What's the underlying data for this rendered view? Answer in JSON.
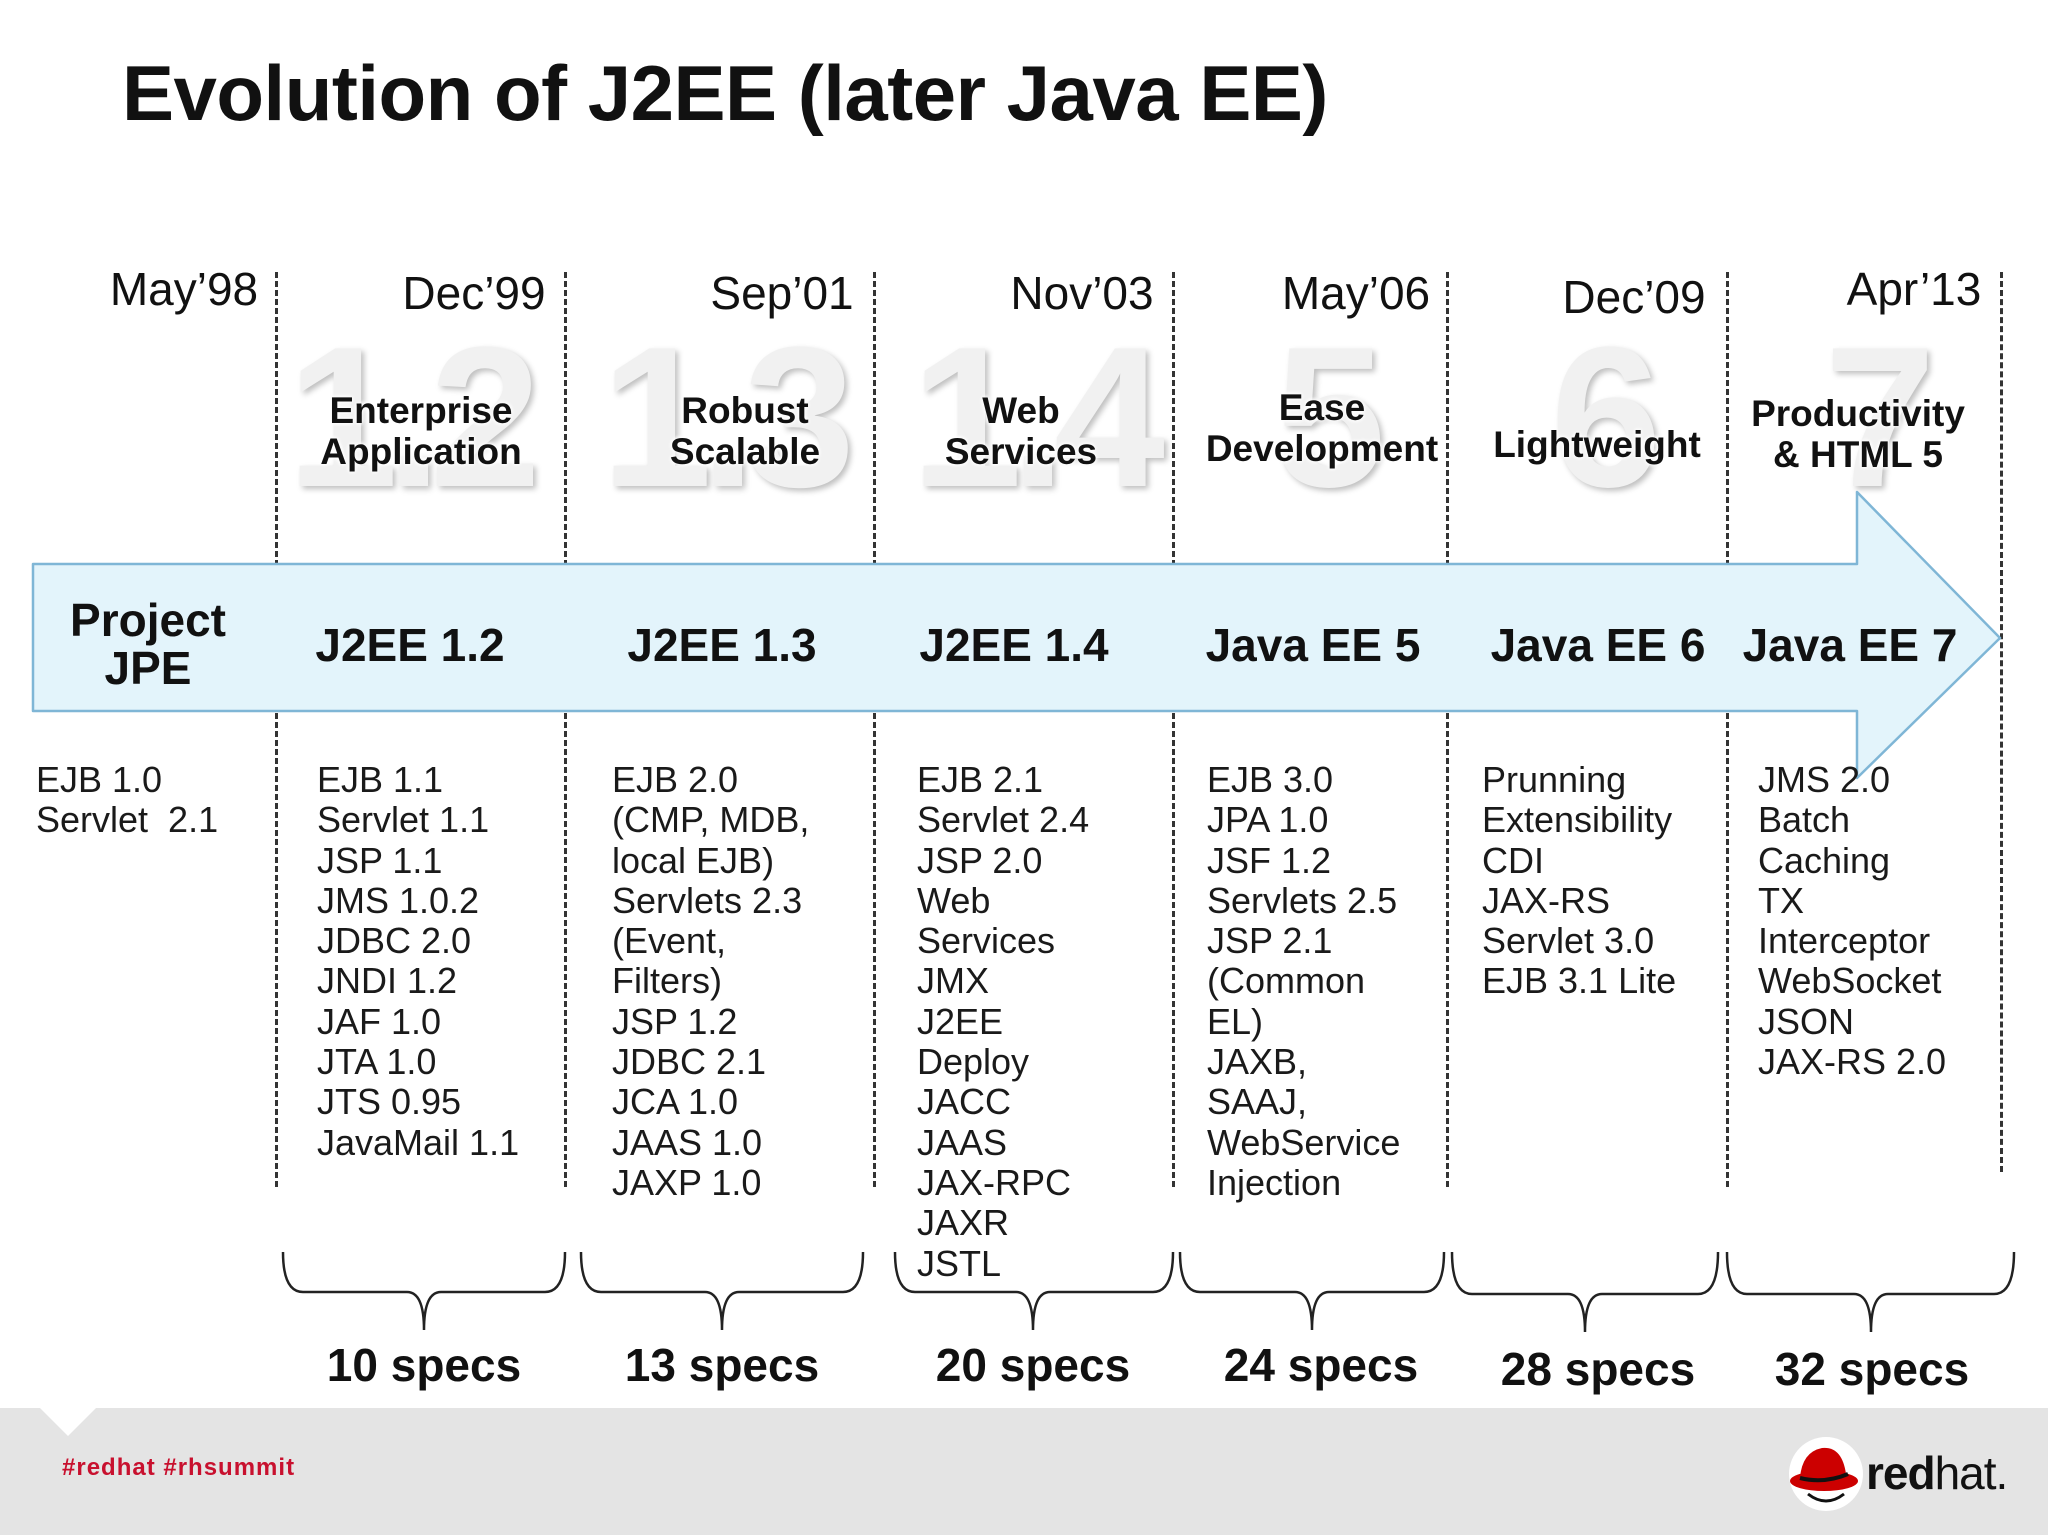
{
  "title": "Evolution of J2EE (later Java EE)",
  "colors": {
    "arrow_fill": "#e3f4fb",
    "arrow_stroke": "#7fb6d6",
    "hashtag": "#c8102e"
  },
  "releases": [
    {
      "date": "May’98",
      "version": "Project\nJPE",
      "theme": "",
      "number": "",
      "specs": [
        "EJB 1.0",
        "Servlet  2.1"
      ],
      "spec_count": ""
    },
    {
      "date": "Dec’99",
      "version": "J2EE 1.2",
      "theme": "Enterprise\nApplication",
      "number": "1.2",
      "specs": [
        "EJB 1.1",
        "Servlet 1.1",
        "JSP 1.1",
        "JMS 1.0.2",
        "JDBC 2.0",
        "JNDI 1.2",
        "JAF 1.0",
        "JTA 1.0",
        "JTS 0.95",
        "JavaMail 1.1"
      ],
      "spec_count": "10 specs"
    },
    {
      "date": "Sep’01",
      "version": "J2EE 1.3",
      "theme": "Robust\nScalable",
      "number": "1.3",
      "specs": [
        "EJB 2.0",
        "(CMP, MDB,",
        "local EJB)",
        "Servlets 2.3",
        "(Event,",
        "Filters)",
        "JSP 1.2",
        "JDBC 2.1",
        "JCA 1.0",
        "JAAS 1.0",
        "JAXP 1.0"
      ],
      "spec_count": "13 specs"
    },
    {
      "date": "Nov’03",
      "version": "J2EE 1.4",
      "theme": "Web\nServices",
      "number": "1.4",
      "specs": [
        "EJB 2.1",
        "Servlet 2.4",
        "JSP 2.0",
        "Web",
        "Services",
        "JMX",
        "J2EE",
        "Deploy",
        "JACC",
        "JAAS",
        "JAX-RPC",
        "JAXR",
        "JSTL"
      ],
      "spec_count": "20 specs"
    },
    {
      "date": "May’06",
      "version": "Java EE 5",
      "theme": "Ease\nDevelopment",
      "number": "5",
      "specs": [
        "EJB 3.0",
        "JPA 1.0",
        "JSF 1.2",
        "Servlets 2.5",
        "JSP 2.1",
        "(Common",
        "EL)",
        "JAXB,",
        "SAAJ,",
        "WebService",
        "Injection"
      ],
      "spec_count": "24 specs"
    },
    {
      "date": "Dec’09",
      "version": "Java EE 6",
      "theme": "Lightweight",
      "number": "6",
      "specs": [
        "Prunning",
        "Extensibility",
        "CDI",
        "JAX-RS",
        "Servlet 3.0",
        "EJB 3.1 Lite"
      ],
      "spec_count": "28 specs"
    },
    {
      "date": "Apr’13",
      "version": "Java EE 7",
      "theme": "Productivity\n& HTML 5",
      "number": "7",
      "specs": [
        "JMS 2.0",
        "Batch",
        "Caching",
        "TX",
        "Interceptor",
        "WebSocket",
        "JSON",
        "JAX-RS 2.0"
      ],
      "spec_count": "32 specs"
    }
  ],
  "footer": {
    "hashtags": "#redhat  #rhsummit",
    "logo_text_bold": "red",
    "logo_text_regular": "hat."
  }
}
